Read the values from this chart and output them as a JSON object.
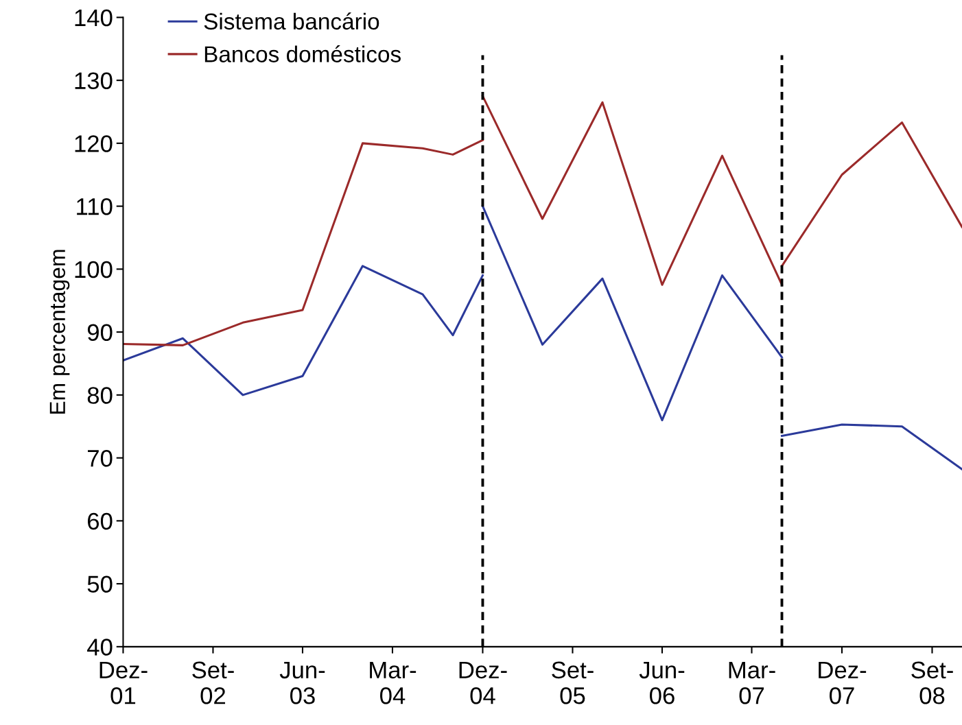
{
  "chart_data": {
    "type": "line",
    "ylabel": "Em percentagem",
    "series": [
      {
        "name": "Sistema bancário",
        "color": "#2b3a9a",
        "x": [
          "2001-12",
          "2002-06",
          "2002-12",
          "2003-06",
          "2003-12",
          "2004-06",
          "2004-09",
          "2004-12"
        ],
        "values": [
          85.5,
          89,
          80,
          83,
          100.5,
          96,
          89.5,
          99
        ]
      },
      {
        "name": "Bancos domésticos",
        "color": "#9b2a2a",
        "x": [
          "2001-12",
          "2002-06",
          "2002-12",
          "2003-06",
          "2003-12",
          "2004-06",
          "2004-09",
          "2004-12"
        ],
        "values": [
          88.1,
          87.9,
          91.5,
          93.5,
          120,
          119.2,
          118.2,
          120.5
        ]
      },
      {
        "color": "#2b3a9a",
        "x": [
          "2004-12",
          "2005-06",
          "2005-12",
          "2006-06",
          "2006-12",
          "2007-06"
        ],
        "values": [
          110,
          88,
          98.5,
          76,
          99,
          86
        ]
      },
      {
        "color": "#9b2a2a",
        "x": [
          "2004-12",
          "2005-06",
          "2005-12",
          "2006-06",
          "2006-12",
          "2007-06"
        ],
        "values": [
          127.5,
          108,
          126.5,
          97.5,
          118,
          97.5
        ]
      },
      {
        "color": "#2b3a9a",
        "x": [
          "2007-06",
          "2007-12",
          "2008-06",
          "2008-12"
        ],
        "values": [
          73.5,
          75.3,
          75,
          68.2
        ]
      },
      {
        "color": "#9b2a2a",
        "x": [
          "2007-06",
          "2007-12",
          "2008-06",
          "2008-12"
        ],
        "values": [
          100.5,
          115,
          123.3,
          106.7
        ]
      }
    ],
    "xlim": [
      "2001-12",
      "2008-12"
    ],
    "xticks": [
      {
        "value": "2001-12",
        "label": "Dez-\n01"
      },
      {
        "value": "2002-09",
        "label": "Set-\n02"
      },
      {
        "value": "2003-06",
        "label": "Jun-\n03"
      },
      {
        "value": "2004-03",
        "label": "Mar-\n04"
      },
      {
        "value": "2004-12",
        "label": "Dez-\n04"
      },
      {
        "value": "2005-09",
        "label": "Set-\n05"
      },
      {
        "value": "2006-06",
        "label": "Jun-\n06"
      },
      {
        "value": "2007-03",
        "label": "Mar-\n07"
      },
      {
        "value": "2007-12",
        "label": "Dez-\n07"
      },
      {
        "value": "2008-09",
        "label": "Set-\n08"
      }
    ],
    "ylim": [
      40,
      140
    ],
    "yticks": [
      40,
      50,
      60,
      70,
      80,
      90,
      100,
      110,
      120,
      130,
      140
    ],
    "ref_lines": [
      {
        "axis": "x",
        "value": "2004-12",
        "color": "#000000",
        "line_style": "dashed"
      },
      {
        "axis": "x",
        "value": "2007-06",
        "color": "#000000",
        "line_style": "dashed"
      }
    ],
    "grid": false,
    "legend": "top left",
    "marker": "none",
    "line_style": "solid"
  }
}
